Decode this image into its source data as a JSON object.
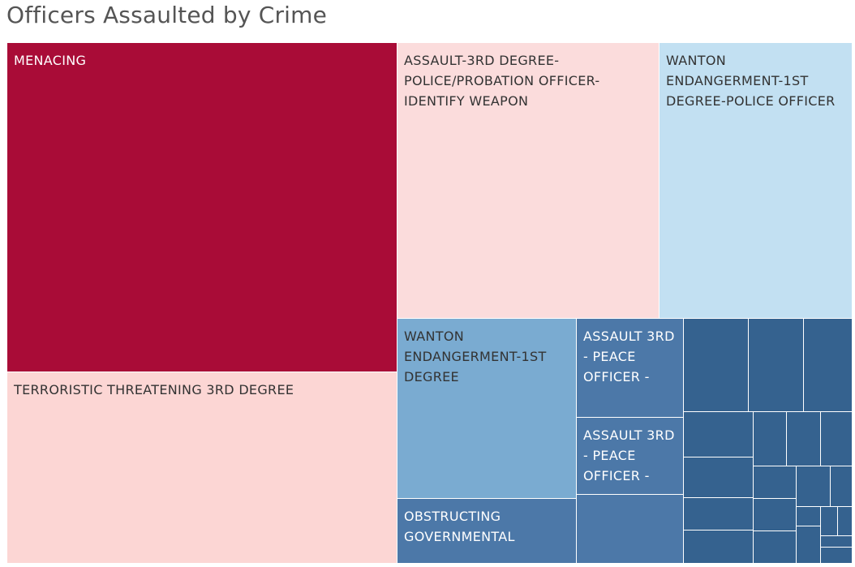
{
  "chart_data": {
    "type": "treemap",
    "title": "Officers Assaulted by Crime",
    "colors": {
      "dark_red": "#a90c37",
      "light_red": "#fcd6d4",
      "pink": "#fbdcdc",
      "light_blue": "#c2e0f2",
      "mid_blue": "#7aabd1",
      "steel_blue": "#4c78a8",
      "dark_blue": "#35628f",
      "label_light": "#ffffff",
      "label_dark": "#333333"
    },
    "cells": [
      {
        "label": "MENACING",
        "value": 196,
        "color": "dark_red",
        "text_color": "label_light"
      },
      {
        "label": "TERRORISTIC THREATENING 3RD DEGREE",
        "value": 115,
        "color": "light_red",
        "text_color": "label_dark"
      },
      {
        "label": "ASSAULT-3RD DEGREE-POLICE/PROBATION OFFICER-IDENTIFY WEAPON",
        "value": 109,
        "color": "pink",
        "text_color": "label_dark"
      },
      {
        "label": "WANTON ENDANGERMENT-1ST DEGREE-POLICE OFFICER",
        "value": 79,
        "color": "light_blue",
        "text_color": "label_dark"
      },
      {
        "label": "WANTON ENDANGERMENT-1ST DEGREE",
        "value": 48,
        "color": "mid_blue",
        "text_color": "label_dark"
      },
      {
        "label": "OBSTRUCTING GOVERNMENTAL",
        "value": 18,
        "color": "steel_blue",
        "text_color": "label_light"
      },
      {
        "label": "ASSAULT 3RD - PEACE OFFICER -",
        "value": 15,
        "color": "steel_blue",
        "text_color": "label_light"
      },
      {
        "label": "ASSAULT 3RD - PEACE OFFICER -",
        "value": 12,
        "color": "steel_blue",
        "text_color": "label_light"
      },
      {
        "label": "",
        "value": 11,
        "color": "steel_blue",
        "text_color": "label_light"
      },
      {
        "label": "",
        "value": 10,
        "color": "dark_blue",
        "text_color": "label_light"
      },
      {
        "label": "",
        "value": 9,
        "color": "dark_blue",
        "text_color": "label_light"
      },
      {
        "label": "",
        "value": 8,
        "color": "dark_blue",
        "text_color": "label_light"
      },
      {
        "label": "",
        "value": 6,
        "color": "dark_blue",
        "text_color": "label_light"
      },
      {
        "label": "",
        "value": 5,
        "color": "dark_blue",
        "text_color": "label_light"
      },
      {
        "label": "",
        "value": 4,
        "color": "dark_blue",
        "text_color": "label_light"
      },
      {
        "label": "",
        "value": 4,
        "color": "dark_blue",
        "text_color": "label_light"
      },
      {
        "label": "",
        "value": 4,
        "color": "dark_blue",
        "text_color": "label_light"
      },
      {
        "label": "",
        "value": 3,
        "color": "dark_blue",
        "text_color": "label_light"
      },
      {
        "label": "",
        "value": 3,
        "color": "dark_blue",
        "text_color": "label_light"
      },
      {
        "label": "",
        "value": 3,
        "color": "dark_blue",
        "text_color": "label_light"
      },
      {
        "label": "",
        "value": 3,
        "color": "dark_blue",
        "text_color": "label_light"
      },
      {
        "label": "",
        "value": 2,
        "color": "dark_blue",
        "text_color": "label_light"
      },
      {
        "label": "",
        "value": 2,
        "color": "dark_blue",
        "text_color": "label_light"
      },
      {
        "label": "",
        "value": 1,
        "color": "dark_blue",
        "text_color": "label_light"
      },
      {
        "label": "",
        "value": 1,
        "color": "dark_blue",
        "text_color": "label_light"
      },
      {
        "label": "",
        "value": 1,
        "color": "dark_blue",
        "text_color": "label_light"
      },
      {
        "label": "",
        "value": 1,
        "color": "dark_blue",
        "text_color": "label_light"
      },
      {
        "label": "",
        "value": 1,
        "color": "dark_blue",
        "text_color": "label_light"
      }
    ]
  }
}
